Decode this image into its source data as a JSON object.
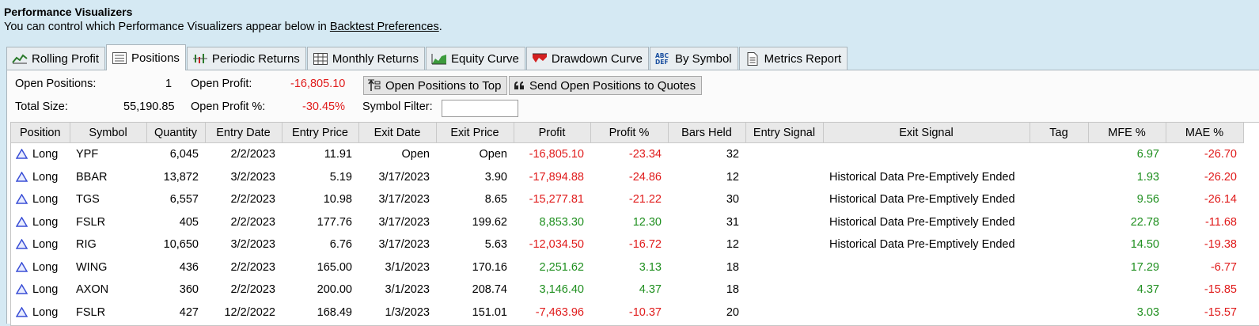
{
  "header": {
    "title": "Performance Visualizers",
    "subtitle_prefix": "You can control which Performance Visualizers appear below in ",
    "subtitle_link": "Backtest Preferences",
    "subtitle_suffix": "."
  },
  "tabs": [
    {
      "label": "Rolling Profit",
      "icon": "rolling-profit-icon"
    },
    {
      "label": "Positions",
      "icon": "positions-list-icon",
      "active": true
    },
    {
      "label": "Periodic Returns",
      "icon": "periodic-returns-icon"
    },
    {
      "label": "Monthly Returns",
      "icon": "monthly-returns-grid-icon"
    },
    {
      "label": "Equity Curve",
      "icon": "equity-curve-icon"
    },
    {
      "label": "Drawdown Curve",
      "icon": "drawdown-curve-icon"
    },
    {
      "label": "By Symbol",
      "icon": "abc-def-icon"
    },
    {
      "label": "Metrics Report",
      "icon": "report-document-icon"
    }
  ],
  "summary": {
    "open_positions_label": "Open Positions:",
    "open_positions_value": "1",
    "total_size_label": "Total Size:",
    "total_size_value": "55,190.85",
    "open_profit_label": "Open Profit:",
    "open_profit_value": "-16,805.10",
    "open_profit_pct_label": "Open Profit %:",
    "open_profit_pct_value": "-30.45%",
    "btn_open_to_top": "Open Positions to Top",
    "btn_send_to_quotes": "Send Open Positions to Quotes",
    "symbol_filter_label": "Symbol Filter:",
    "symbol_filter_value": ""
  },
  "columns": [
    "Position",
    "Symbol",
    "Quantity",
    "Entry Date",
    "Entry Price",
    "Exit Date",
    "Exit Price",
    "Profit",
    "Profit %",
    "Bars Held",
    "Entry Signal",
    "Exit Signal",
    "Tag",
    "MFE %",
    "MAE %"
  ],
  "rows": [
    {
      "position": "Long",
      "symbol": "YPF",
      "quantity": "6,045",
      "entry_date": "2/2/2023",
      "entry_price": "11.91",
      "exit_date": "Open",
      "exit_price": "Open",
      "profit": "-16,805.10",
      "profit_pct": "-23.34",
      "bars_held": "32",
      "entry_signal": "",
      "exit_signal": "",
      "tag": "",
      "mfe": "6.97",
      "mae": "-26.70"
    },
    {
      "position": "Long",
      "symbol": "BBAR",
      "quantity": "13,872",
      "entry_date": "3/2/2023",
      "entry_price": "5.19",
      "exit_date": "3/17/2023",
      "exit_price": "3.90",
      "profit": "-17,894.88",
      "profit_pct": "-24.86",
      "bars_held": "12",
      "entry_signal": "",
      "exit_signal": "Historical Data Pre-Emptively Ended",
      "tag": "",
      "mfe": "1.93",
      "mae": "-26.20"
    },
    {
      "position": "Long",
      "symbol": "TGS",
      "quantity": "6,557",
      "entry_date": "2/2/2023",
      "entry_price": "10.98",
      "exit_date": "3/17/2023",
      "exit_price": "8.65",
      "profit": "-15,277.81",
      "profit_pct": "-21.22",
      "bars_held": "30",
      "entry_signal": "",
      "exit_signal": "Historical Data Pre-Emptively Ended",
      "tag": "",
      "mfe": "9.56",
      "mae": "-26.14"
    },
    {
      "position": "Long",
      "symbol": "FSLR",
      "quantity": "405",
      "entry_date": "2/2/2023",
      "entry_price": "177.76",
      "exit_date": "3/17/2023",
      "exit_price": "199.62",
      "profit": "8,853.30",
      "profit_pct": "12.30",
      "bars_held": "31",
      "entry_signal": "",
      "exit_signal": "Historical Data Pre-Emptively Ended",
      "tag": "",
      "mfe": "22.78",
      "mae": "-11.68"
    },
    {
      "position": "Long",
      "symbol": "RIG",
      "quantity": "10,650",
      "entry_date": "3/2/2023",
      "entry_price": "6.76",
      "exit_date": "3/17/2023",
      "exit_price": "5.63",
      "profit": "-12,034.50",
      "profit_pct": "-16.72",
      "bars_held": "12",
      "entry_signal": "",
      "exit_signal": "Historical Data Pre-Emptively Ended",
      "tag": "",
      "mfe": "14.50",
      "mae": "-19.38"
    },
    {
      "position": "Long",
      "symbol": "WING",
      "quantity": "436",
      "entry_date": "2/2/2023",
      "entry_price": "165.00",
      "exit_date": "3/1/2023",
      "exit_price": "170.16",
      "profit": "2,251.62",
      "profit_pct": "3.13",
      "bars_held": "18",
      "entry_signal": "",
      "exit_signal": "",
      "tag": "",
      "mfe": "17.29",
      "mae": "-6.77"
    },
    {
      "position": "Long",
      "symbol": "AXON",
      "quantity": "360",
      "entry_date": "2/2/2023",
      "entry_price": "200.00",
      "exit_date": "3/1/2023",
      "exit_price": "208.74",
      "profit": "3,146.40",
      "profit_pct": "4.37",
      "bars_held": "18",
      "entry_signal": "",
      "exit_signal": "",
      "tag": "",
      "mfe": "4.37",
      "mae": "-15.85"
    },
    {
      "position": "Long",
      "symbol": "FSLR",
      "quantity": "427",
      "entry_date": "12/2/2022",
      "entry_price": "168.49",
      "exit_date": "1/3/2023",
      "exit_price": "151.01",
      "profit": "-7,463.96",
      "profit_pct": "-10.37",
      "bars_held": "20",
      "entry_signal": "",
      "exit_signal": "",
      "tag": "",
      "mfe": "3.03",
      "mae": "-15.57"
    }
  ],
  "colors": {
    "positive": "#1f8f1f",
    "negative": "#e01b1b",
    "long_triangle": "#3a4fd6"
  }
}
